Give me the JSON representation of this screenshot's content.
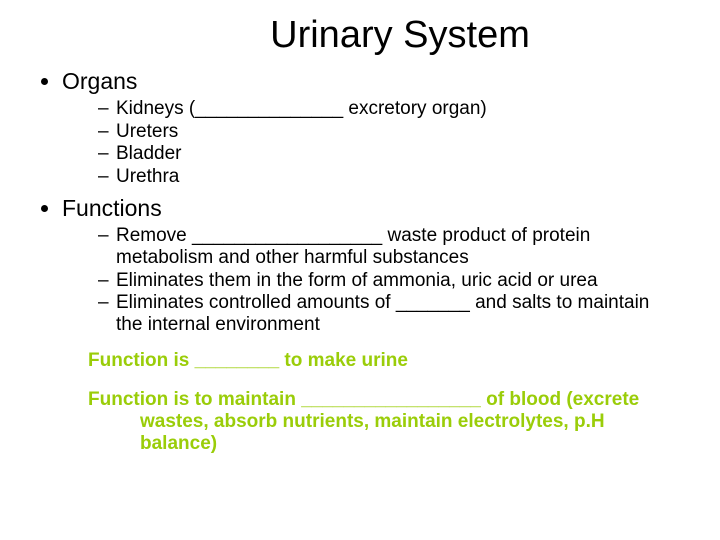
{
  "title": "Urinary System",
  "sections": {
    "organs": {
      "heading": "Organs",
      "items": [
        "Kidneys (______________ excretory organ)",
        "Ureters",
        "Bladder",
        "Urethra"
      ]
    },
    "functions": {
      "heading": "Functions",
      "items": [
        "Remove __________________ waste product of protein metabolism and other harmful substances",
        "Eliminates them in the form of ammonia, uric acid or urea",
        "Eliminates controlled amounts of _______ and salts to maintain the internal environment"
      ]
    }
  },
  "summary": {
    "line1": "Function is ________ to make urine",
    "line2a": "Function is to maintain _________________ of blood (excrete",
    "line2b": "wastes, absorb nutrients, maintain electrolytes, p.H balance)"
  },
  "colors": {
    "text": "#000000",
    "accent": "#9acd09",
    "background": "#ffffff"
  },
  "fonts": {
    "title_size": 38,
    "level1_size": 23,
    "level2_size": 19,
    "summary_size": 19
  }
}
